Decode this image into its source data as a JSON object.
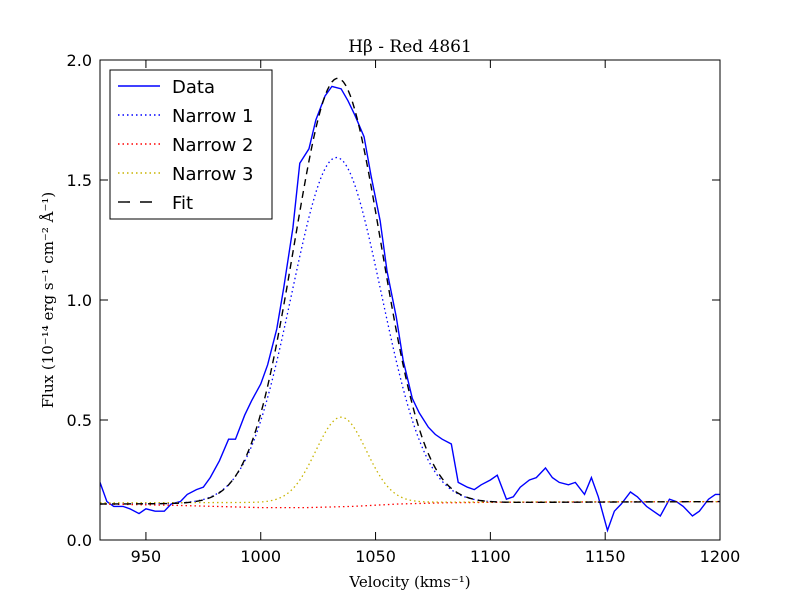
{
  "chart_data": {
    "type": "line",
    "title": "Hβ - Red 4861",
    "xlabel": "Velocity (kms⁻¹)",
    "ylabel": "Flux (10⁻¹⁴ erg s⁻¹ cm⁻² Å⁻¹)",
    "xlim": [
      930,
      1200
    ],
    "ylim": [
      0.0,
      2.0
    ],
    "xticks": [
      950,
      1000,
      1050,
      1100,
      1150,
      1200
    ],
    "xtick_labels": [
      "950",
      "1000",
      "1050",
      "1100",
      "1150",
      "1200"
    ],
    "yticks": [
      0.0,
      0.5,
      1.0,
      1.5,
      2.0
    ],
    "ytick_labels": [
      "0.0",
      "0.5",
      "1.0",
      "1.5",
      "2.0"
    ],
    "legend_position": "top-left",
    "grid": false,
    "series": [
      {
        "name": "Data",
        "style": "solid",
        "color": "#0000ff",
        "x": [
          930,
          933,
          936,
          940,
          943,
          947,
          950,
          954,
          958,
          961,
          965,
          968,
          972,
          975,
          978,
          982,
          986,
          989,
          993,
          996,
          1000,
          1003,
          1007,
          1010,
          1014,
          1017,
          1021,
          1024,
          1028,
          1031,
          1035,
          1038,
          1041,
          1045,
          1048,
          1052,
          1055,
          1059,
          1062,
          1066,
          1069,
          1073,
          1076,
          1079,
          1083,
          1086,
          1090,
          1093,
          1096,
          1100,
          1103,
          1107,
          1110,
          1113,
          1117,
          1120,
          1124,
          1127,
          1130,
          1134,
          1137,
          1141,
          1144,
          1147,
          1151,
          1154,
          1157,
          1161,
          1164,
          1168,
          1171,
          1174,
          1178,
          1181,
          1184,
          1188,
          1191,
          1195,
          1198,
          1200
        ],
        "y": [
          0.24,
          0.16,
          0.14,
          0.14,
          0.13,
          0.11,
          0.13,
          0.12,
          0.12,
          0.15,
          0.16,
          0.19,
          0.21,
          0.22,
          0.26,
          0.33,
          0.42,
          0.42,
          0.52,
          0.58,
          0.65,
          0.73,
          0.88,
          1.05,
          1.3,
          1.57,
          1.63,
          1.75,
          1.85,
          1.89,
          1.88,
          1.83,
          1.77,
          1.68,
          1.52,
          1.33,
          1.12,
          0.93,
          0.75,
          0.59,
          0.53,
          0.47,
          0.44,
          0.42,
          0.4,
          0.24,
          0.22,
          0.21,
          0.23,
          0.25,
          0.27,
          0.17,
          0.18,
          0.22,
          0.25,
          0.26,
          0.3,
          0.26,
          0.24,
          0.23,
          0.24,
          0.19,
          0.26,
          0.18,
          0.04,
          0.12,
          0.15,
          0.2,
          0.18,
          0.14,
          0.12,
          0.1,
          0.17,
          0.16,
          0.14,
          0.1,
          0.12,
          0.17,
          0.19,
          0.19
        ]
      },
      {
        "name": "Narrow 1",
        "style": "dotted",
        "color": "#0000ff",
        "model": "gaussian",
        "center": 1033,
        "sigma": 19.5,
        "amplitude": 1.44,
        "baseline_start": 0.15,
        "baseline_end": 0.16
      },
      {
        "name": "Narrow 2",
        "style": "dotted",
        "color": "#ff0000",
        "model": "baseline",
        "x": [
          930,
          960,
          980,
          1000,
          1020,
          1040,
          1060,
          1080,
          1100,
          1120,
          1150,
          1200
        ],
        "y": [
          0.15,
          0.145,
          0.14,
          0.135,
          0.135,
          0.14,
          0.15,
          0.155,
          0.157,
          0.158,
          0.159,
          0.16
        ]
      },
      {
        "name": "Narrow 3",
        "style": "dotted",
        "color": "#c8b400",
        "model": "gaussian",
        "center": 1035,
        "sigma": 11,
        "amplitude": 0.355,
        "baseline_start": 0.155,
        "baseline_end": 0.16
      },
      {
        "name": "Fit",
        "style": "dashed",
        "color": "#000000",
        "model": "sum",
        "center": 1033.5,
        "sigma": 19,
        "amplitude": 1.77,
        "baseline_start": 0.15,
        "baseline_end": 0.16
      }
    ]
  }
}
